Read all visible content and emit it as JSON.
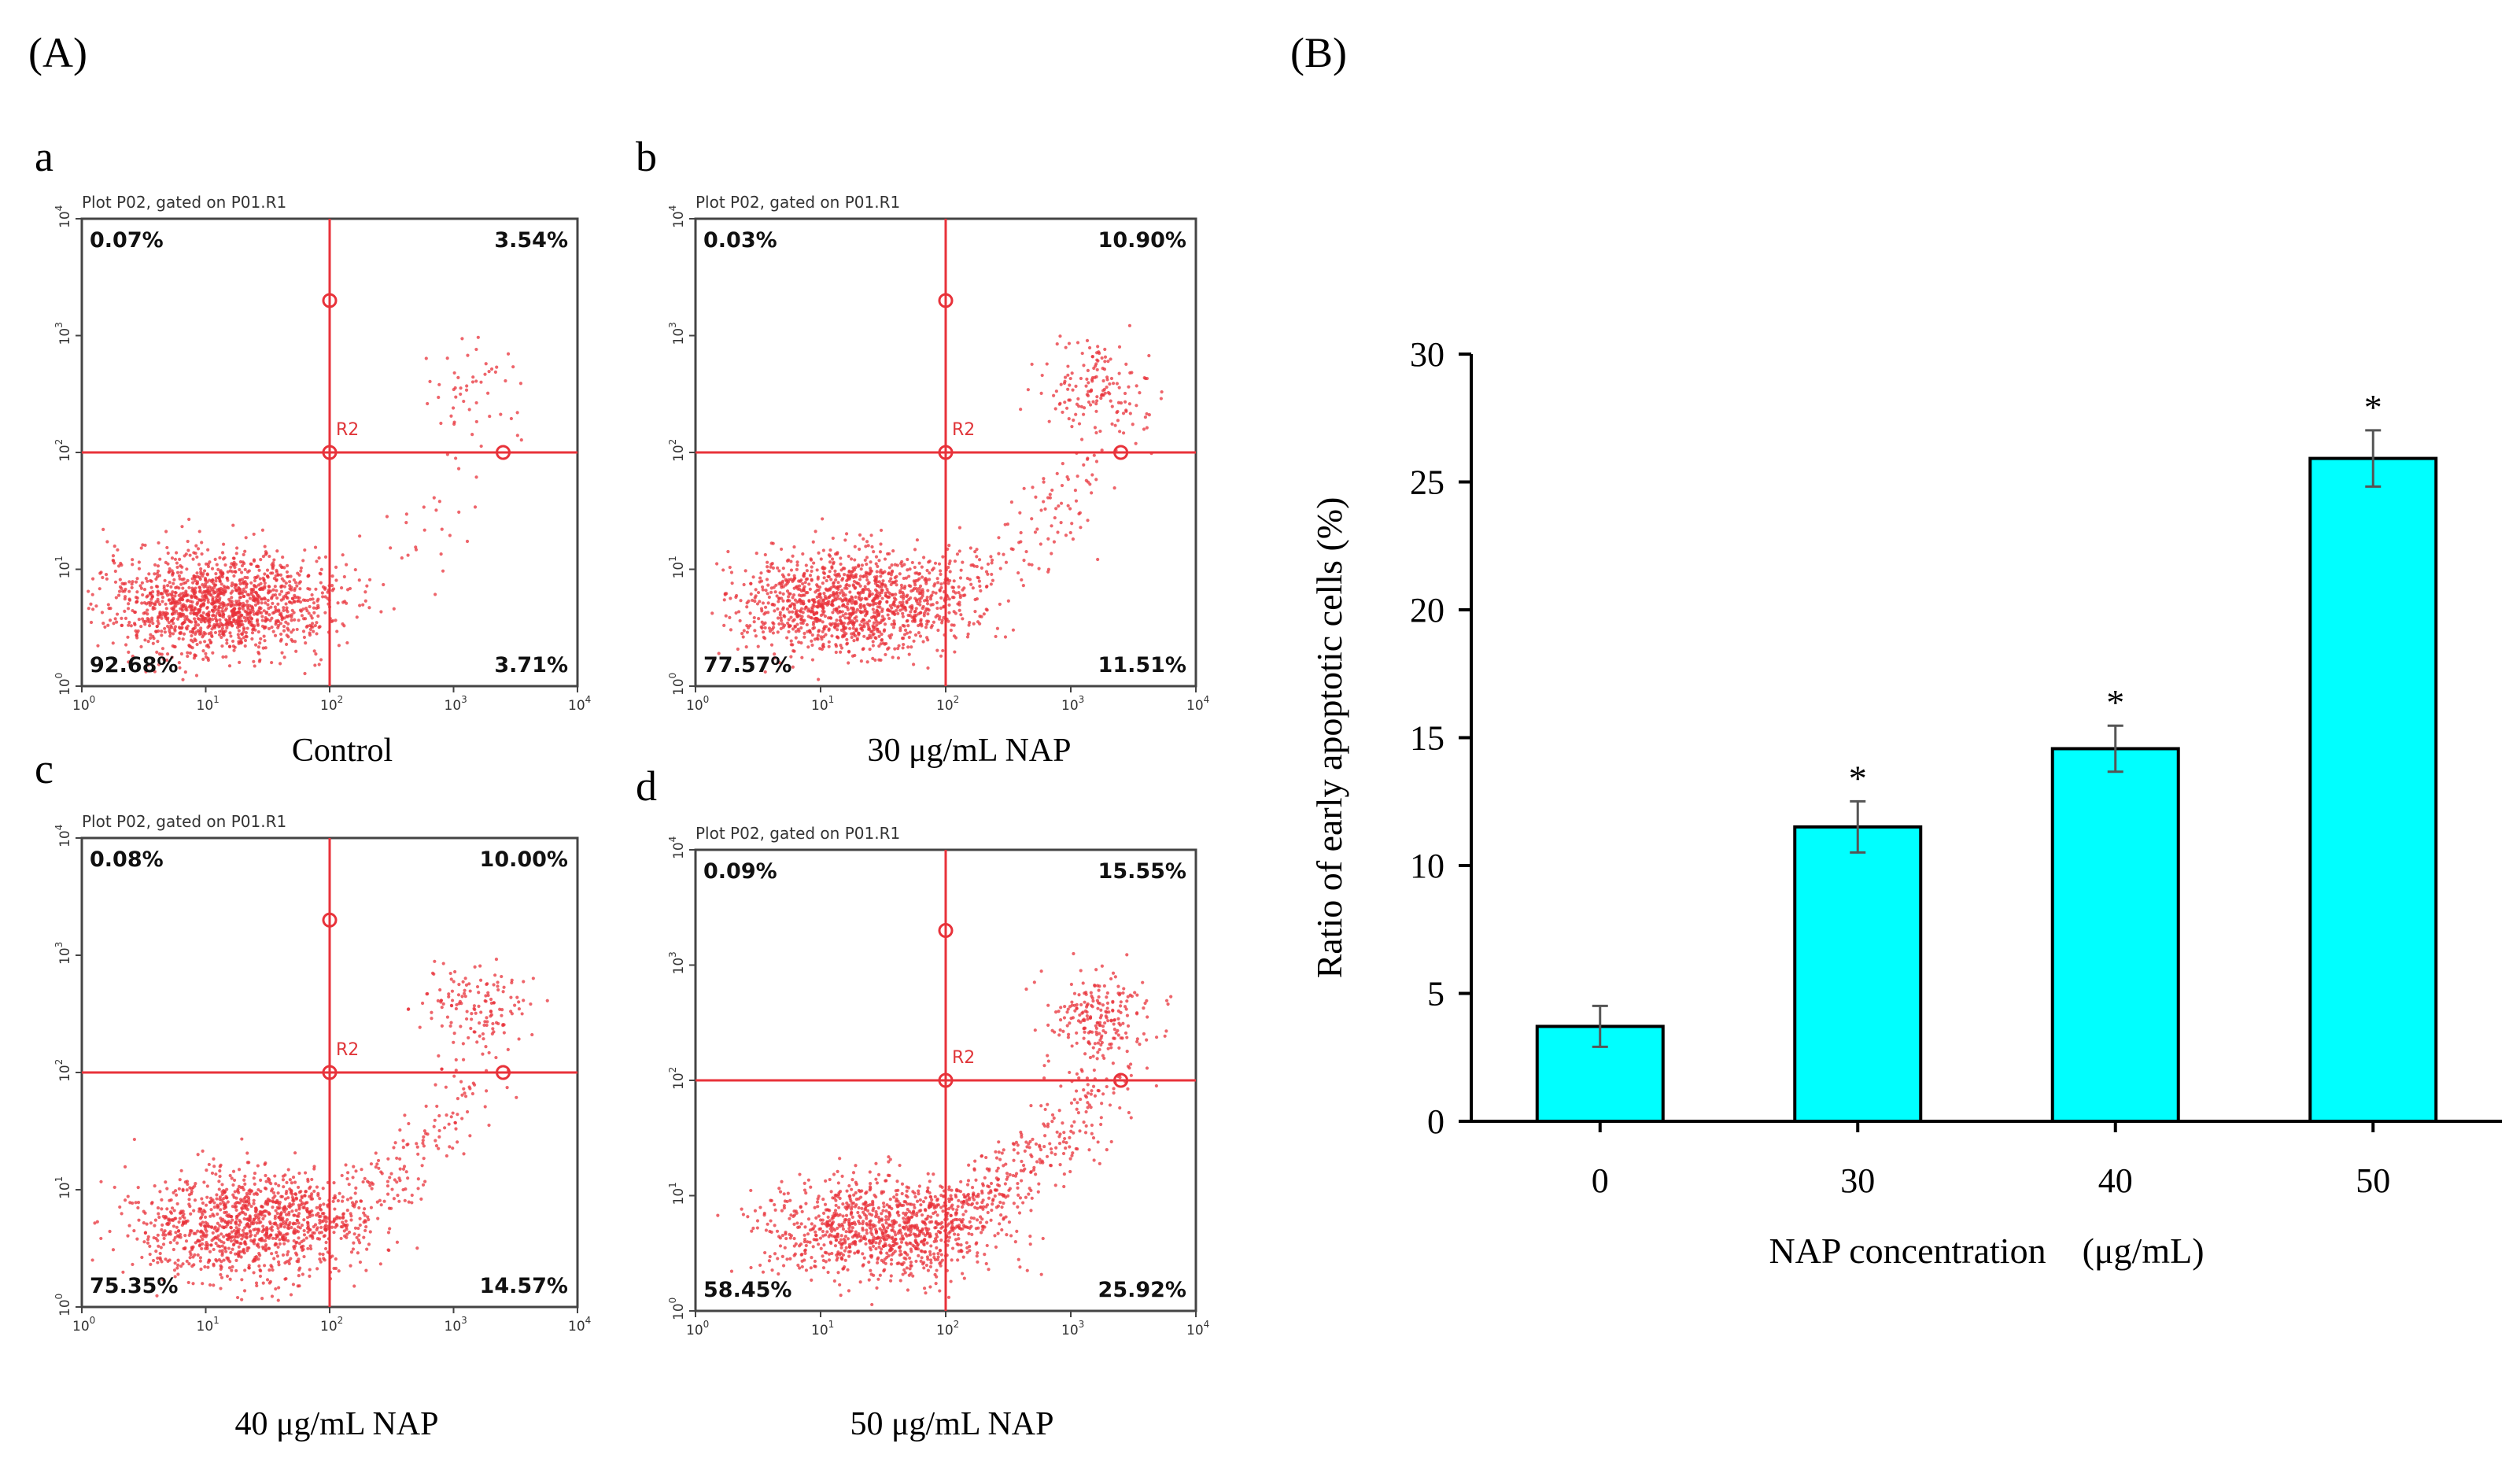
{
  "figure": {
    "panel_a_label": "(A)",
    "panel_b_label": "(B)"
  },
  "flow_plots": [
    {
      "letter": "a",
      "title": "Plot P02, gated on P01.R1",
      "gate": "R2",
      "ul": "0.07%",
      "ur": "3.54%",
      "ll": "92.68%",
      "lr": "3.71%",
      "condition": "Control"
    },
    {
      "letter": "b",
      "title": "Plot P02, gated on P01.R1",
      "gate": "R2",
      "ul": "0.03%",
      "ur": "10.90%",
      "ll": "77.57%",
      "lr": "11.51%",
      "condition": "30 μg/mL NAP"
    },
    {
      "letter": "c",
      "title": "Plot P02, gated on P01.R1",
      "gate": "R2",
      "ul": "0.08%",
      "ur": "10.00%",
      "ll": "75.35%",
      "lr": "14.57%",
      "condition": "40 μg/mL NAP"
    },
    {
      "letter": "d",
      "title": "Plot P02, gated on P01.R1",
      "gate": "R2",
      "ul": "0.09%",
      "ur": "15.55%",
      "ll": "58.45%",
      "lr": "25.92%",
      "condition": "50 μg/mL NAP"
    }
  ],
  "log_ticks": {
    "base": "10",
    "exponents": [
      "0",
      "1",
      "2",
      "3",
      "4"
    ]
  },
  "colors": {
    "dots": "#e8323a",
    "gate_lines": "#e8323a",
    "bars": "#00ffff",
    "bar_stroke": "#000000"
  },
  "chart_data": {
    "type": "bar",
    "categories": [
      "0",
      "30",
      "40",
      "50"
    ],
    "values": [
      3.71,
      11.51,
      14.57,
      25.92
    ],
    "errors": [
      0.8,
      1.0,
      0.9,
      1.1
    ],
    "significance": [
      "",
      "*",
      "*",
      "*"
    ],
    "xlabel": "NAP concentration　(μg/mL)",
    "ylabel": "Ratio of early apoptotic cells (%)",
    "ylim": [
      0,
      30
    ],
    "yticks": [
      0,
      5,
      10,
      15,
      20,
      25,
      30
    ],
    "grid": false
  }
}
